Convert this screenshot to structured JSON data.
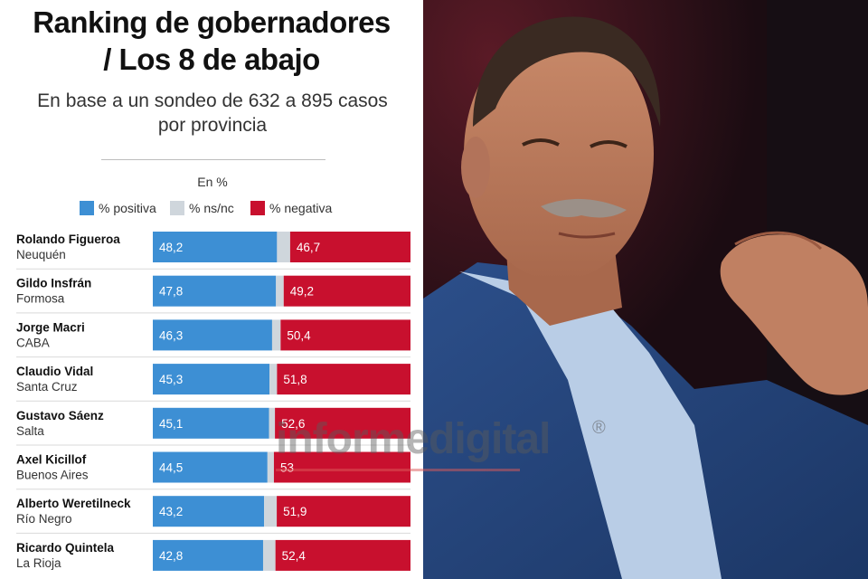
{
  "header": {
    "title_line1": "Ranking de gobernadores",
    "title_line2": "/ Los 8 de abajo",
    "subtitle_line1": "En base a un sondeo de 632 a 895 casos",
    "subtitle_line2": "por provincia",
    "unit": "En %"
  },
  "legend": [
    {
      "label": "% positiva",
      "color": "#3d8fd4"
    },
    {
      "label": "% ns/nc",
      "color": "#cfd6dc"
    },
    {
      "label": "% negativa",
      "color": "#c8102e"
    }
  ],
  "chart_data": {
    "type": "bar",
    "stacked": true,
    "orientation": "horizontal",
    "title": "Ranking de gobernadores / Los 8 de abajo",
    "subtitle": "En base a un sondeo de 632 a 895 casos por provincia",
    "unit": "En %",
    "xlim": [
      0,
      100
    ],
    "categories": [
      {
        "name": "Rolando Figueroa",
        "province": "Neuquén"
      },
      {
        "name": "Gildo Insfrán",
        "province": "Formosa"
      },
      {
        "name": "Jorge Macri",
        "province": "CABA"
      },
      {
        "name": "Claudio Vidal",
        "province": "Santa Cruz"
      },
      {
        "name": "Gustavo Sáenz",
        "province": "Salta"
      },
      {
        "name": "Axel Kicillof",
        "province": "Buenos Aires"
      },
      {
        "name": "Alberto Weretilneck",
        "province": "Río Negro"
      },
      {
        "name": "Ricardo Quintela",
        "province": "La Rioja"
      }
    ],
    "series": [
      {
        "name": "% positiva",
        "color": "#3d8fd4",
        "values": [
          48.2,
          47.8,
          46.3,
          45.3,
          45.1,
          44.5,
          43.2,
          42.8
        ],
        "labels": [
          "48,2",
          "47,8",
          "46,3",
          "45,3",
          "45,1",
          "44,5",
          "43,2",
          "42,8"
        ]
      },
      {
        "name": "% ns/nc",
        "color": "#cfd6dc",
        "values": [
          5.1,
          3.0,
          3.3,
          2.9,
          2.3,
          2.5,
          4.9,
          4.8
        ],
        "labels": [
          "",
          "",
          "",
          "",
          "",
          "",
          "",
          ""
        ]
      },
      {
        "name": "% negativa",
        "color": "#c8102e",
        "values": [
          46.7,
          49.2,
          50.4,
          51.8,
          52.6,
          53,
          51.9,
          52.4
        ],
        "labels": [
          "46,7",
          "49,2",
          "50,4",
          "51,8",
          "52,6",
          "53",
          "51,9",
          "52,4"
        ]
      }
    ]
  },
  "watermark": {
    "text": "informedigital",
    "symbol": "®"
  },
  "photo": {
    "description_icon": "portrait-photo"
  }
}
